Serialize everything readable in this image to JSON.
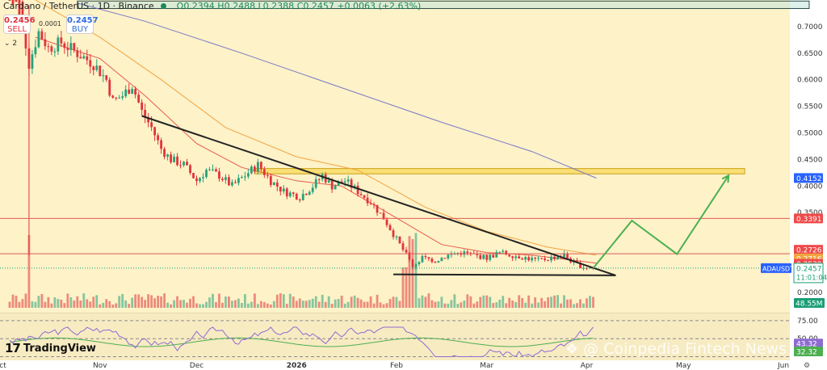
{
  "header": {
    "title": "Cardano / TetherUS · 1D · Binance",
    "ohlc": "O0.2394 H0.2488 L0.2388 C0.2457 +0.0063 (+2.63%)"
  },
  "quote": {
    "sell_price": "0.2456",
    "sell_label": "SELL",
    "buy_price": "0.2457",
    "buy_label": "BUY",
    "spread": "0.0001",
    "collapse": "2"
  },
  "colors": {
    "bull": "#27a17a",
    "bear": "#e0343c",
    "ema_fast": "#e85a4a",
    "ema_mid": "#f2a441",
    "ema_slow": "#7b78c8",
    "zone": "#f5d030",
    "arrow": "#4caf50",
    "trend": "#222222",
    "resistance": "#e05a5a"
  },
  "chart_data": {
    "type": "candlestick",
    "symbol": "ADAUSDT",
    "interval": "1D",
    "x_start": "2025-10-01",
    "x_end": "2026-06-03",
    "x_ticks": [
      {
        "label": "Oct",
        "date": "2025-10-01"
      },
      {
        "label": "Nov",
        "date": "2025-11-01"
      },
      {
        "label": "Dec",
        "date": "2025-12-01"
      },
      {
        "label": "2026",
        "date": "2026-01-01"
      },
      {
        "label": "Feb",
        "date": "2026-02-01"
      },
      {
        "label": "Mar",
        "date": "2026-03-01"
      },
      {
        "label": "Apr",
        "date": "2026-04-01"
      },
      {
        "label": "May",
        "date": "2026-05-01"
      },
      {
        "label": "Jun",
        "date": "2026-06-01"
      }
    ],
    "ylim": [
      0.165,
      0.75
    ],
    "y_ticks": [
      0.2,
      0.25,
      0.3,
      0.35,
      0.4,
      0.45,
      0.5,
      0.55,
      0.6,
      0.65,
      0.7
    ],
    "y_tick_labels": [
      "0.2000",
      "",
      "",
      "0.3500",
      "0.4000",
      "0.4500",
      "0.5000",
      "0.5500",
      "0.6000",
      "0.6500",
      "0.7000"
    ],
    "price_points": [
      [
        "2025-10-01",
        0.82
      ],
      [
        "2025-10-06",
        0.78
      ],
      [
        "2025-10-10",
        0.63
      ],
      [
        "2025-10-13",
        0.69
      ],
      [
        "2025-10-16",
        0.66
      ],
      [
        "2025-10-20",
        0.67
      ],
      [
        "2025-10-25",
        0.65
      ],
      [
        "2025-10-30",
        0.63
      ],
      [
        "2025-11-03",
        0.6
      ],
      [
        "2025-11-05",
        0.56
      ],
      [
        "2025-11-08",
        0.57
      ],
      [
        "2025-11-11",
        0.59
      ],
      [
        "2025-11-14",
        0.54
      ],
      [
        "2025-11-17",
        0.51
      ],
      [
        "2025-11-20",
        0.47
      ],
      [
        "2025-11-23",
        0.45
      ],
      [
        "2025-11-27",
        0.44
      ],
      [
        "2025-12-01",
        0.41
      ],
      [
        "2025-12-04",
        0.43
      ],
      [
        "2025-12-08",
        0.42
      ],
      [
        "2025-12-12",
        0.4
      ],
      [
        "2025-12-16",
        0.42
      ],
      [
        "2025-12-20",
        0.44
      ],
      [
        "2025-12-24",
        0.41
      ],
      [
        "2025-12-28",
        0.39
      ],
      [
        "2026-01-02",
        0.38
      ],
      [
        "2026-01-06",
        0.4
      ],
      [
        "2026-01-09",
        0.42
      ],
      [
        "2026-01-12",
        0.4
      ],
      [
        "2026-01-16",
        0.41
      ],
      [
        "2026-01-20",
        0.39
      ],
      [
        "2026-01-24",
        0.37
      ],
      [
        "2026-01-28",
        0.34
      ],
      [
        "2026-02-01",
        0.3
      ],
      [
        "2026-02-04",
        0.27
      ],
      [
        "2026-02-06",
        0.25
      ],
      [
        "2026-02-09",
        0.265
      ],
      [
        "2026-02-13",
        0.26
      ],
      [
        "2026-02-17",
        0.27
      ],
      [
        "2026-02-21",
        0.275
      ],
      [
        "2026-02-25",
        0.27
      ],
      [
        "2026-03-01",
        0.265
      ],
      [
        "2026-03-05",
        0.275
      ],
      [
        "2026-03-09",
        0.27
      ],
      [
        "2026-03-13",
        0.265
      ],
      [
        "2026-03-17",
        0.26
      ],
      [
        "2026-03-21",
        0.265
      ],
      [
        "2026-03-25",
        0.27
      ],
      [
        "2026-03-28",
        0.255
      ],
      [
        "2026-03-31",
        0.248
      ],
      [
        "2026-04-03",
        0.2457
      ]
    ],
    "ema_fast": [
      [
        "2025-10-12",
        0.68
      ],
      [
        "2025-11-01",
        0.64
      ],
      [
        "2025-11-15",
        0.57
      ],
      [
        "2025-12-01",
        0.48
      ],
      [
        "2025-12-15",
        0.435
      ],
      [
        "2026-01-01",
        0.41
      ],
      [
        "2026-01-15",
        0.4
      ],
      [
        "2026-02-01",
        0.34
      ],
      [
        "2026-02-15",
        0.29
      ],
      [
        "2026-03-01",
        0.275
      ],
      [
        "2026-03-15",
        0.27
      ],
      [
        "2026-04-04",
        0.255
      ]
    ],
    "ema_mid": [
      [
        "2025-10-12",
        0.75
      ],
      [
        "2025-11-01",
        0.68
      ],
      [
        "2025-11-20",
        0.6
      ],
      [
        "2025-12-10",
        0.51
      ],
      [
        "2026-01-01",
        0.455
      ],
      [
        "2026-01-20",
        0.43
      ],
      [
        "2026-02-10",
        0.36
      ],
      [
        "2026-03-01",
        0.315
      ],
      [
        "2026-03-20",
        0.285
      ],
      [
        "2026-04-04",
        0.27
      ]
    ],
    "ema_slow": [
      [
        "2025-10-25",
        0.744
      ],
      [
        "2025-11-15",
        0.71
      ],
      [
        "2025-12-15",
        0.65
      ],
      [
        "2026-01-15",
        0.585
      ],
      [
        "2026-02-15",
        0.52
      ],
      [
        "2026-03-15",
        0.465
      ],
      [
        "2026-04-04",
        0.415
      ]
    ],
    "trendline_upper": [
      [
        "2025-11-14",
        0.532
      ],
      [
        "2026-04-10",
        0.232
      ]
    ],
    "trendline_lower": [
      [
        "2026-01-31",
        0.234
      ],
      [
        "2026-04-10",
        0.232
      ]
    ],
    "resistance_lines": [
      0.3391,
      0.2726
    ],
    "zones": [
      {
        "x0": "2025-10-25",
        "x1": "2026-06-09",
        "y0": 0.734,
        "y1": 0.748
      },
      {
        "x0": "2025-12-19",
        "x1": "2026-05-20",
        "y0": 0.423,
        "y1": 0.433
      }
    ],
    "projection_arrow": [
      [
        "2026-04-03",
        0.2457
      ],
      [
        "2026-04-15",
        0.335
      ],
      [
        "2026-04-29",
        0.272
      ],
      [
        "2026-05-15",
        0.42
      ]
    ],
    "price_labels": [
      {
        "text": "0.4152",
        "value": 0.4152,
        "bg": "#2962ff",
        "fg": "#ffffff"
      },
      {
        "text": "0.3391",
        "value": 0.3391,
        "bg": "#ef4a4a",
        "fg": "#ffffff"
      },
      {
        "text": "0.2726",
        "value": 0.2726,
        "bg": "#ef4a4a",
        "fg": "#ffffff"
      },
      {
        "text": "0.2716",
        "value": 0.2716,
        "bg": "#f2a441",
        "fg": "#ffffff"
      },
      {
        "text": "0.2539",
        "value": 0.2539,
        "bg": "#ef4a4a",
        "fg": "#ffffff"
      },
      {
        "text": "0.2457",
        "value": 0.2457,
        "bg": "#ffffff",
        "fg": "#1a9e75"
      }
    ],
    "last_price_time": "11:01:04",
    "volume_label": "48.55M",
    "oscillator": {
      "ylim": [
        20,
        85
      ],
      "ticks": [
        75.0,
        50.0
      ],
      "tick_labels": [
        "75.00",
        "50.00"
      ],
      "values": [
        "43.32",
        "32.32"
      ],
      "value_levels": [
        43.32,
        32.32
      ],
      "value_colors": [
        "#8d6bd2",
        "#4caf50"
      ]
    }
  },
  "branding": {
    "tradingview": "TradingView",
    "watermark": "Coinpedia Fintech News"
  }
}
